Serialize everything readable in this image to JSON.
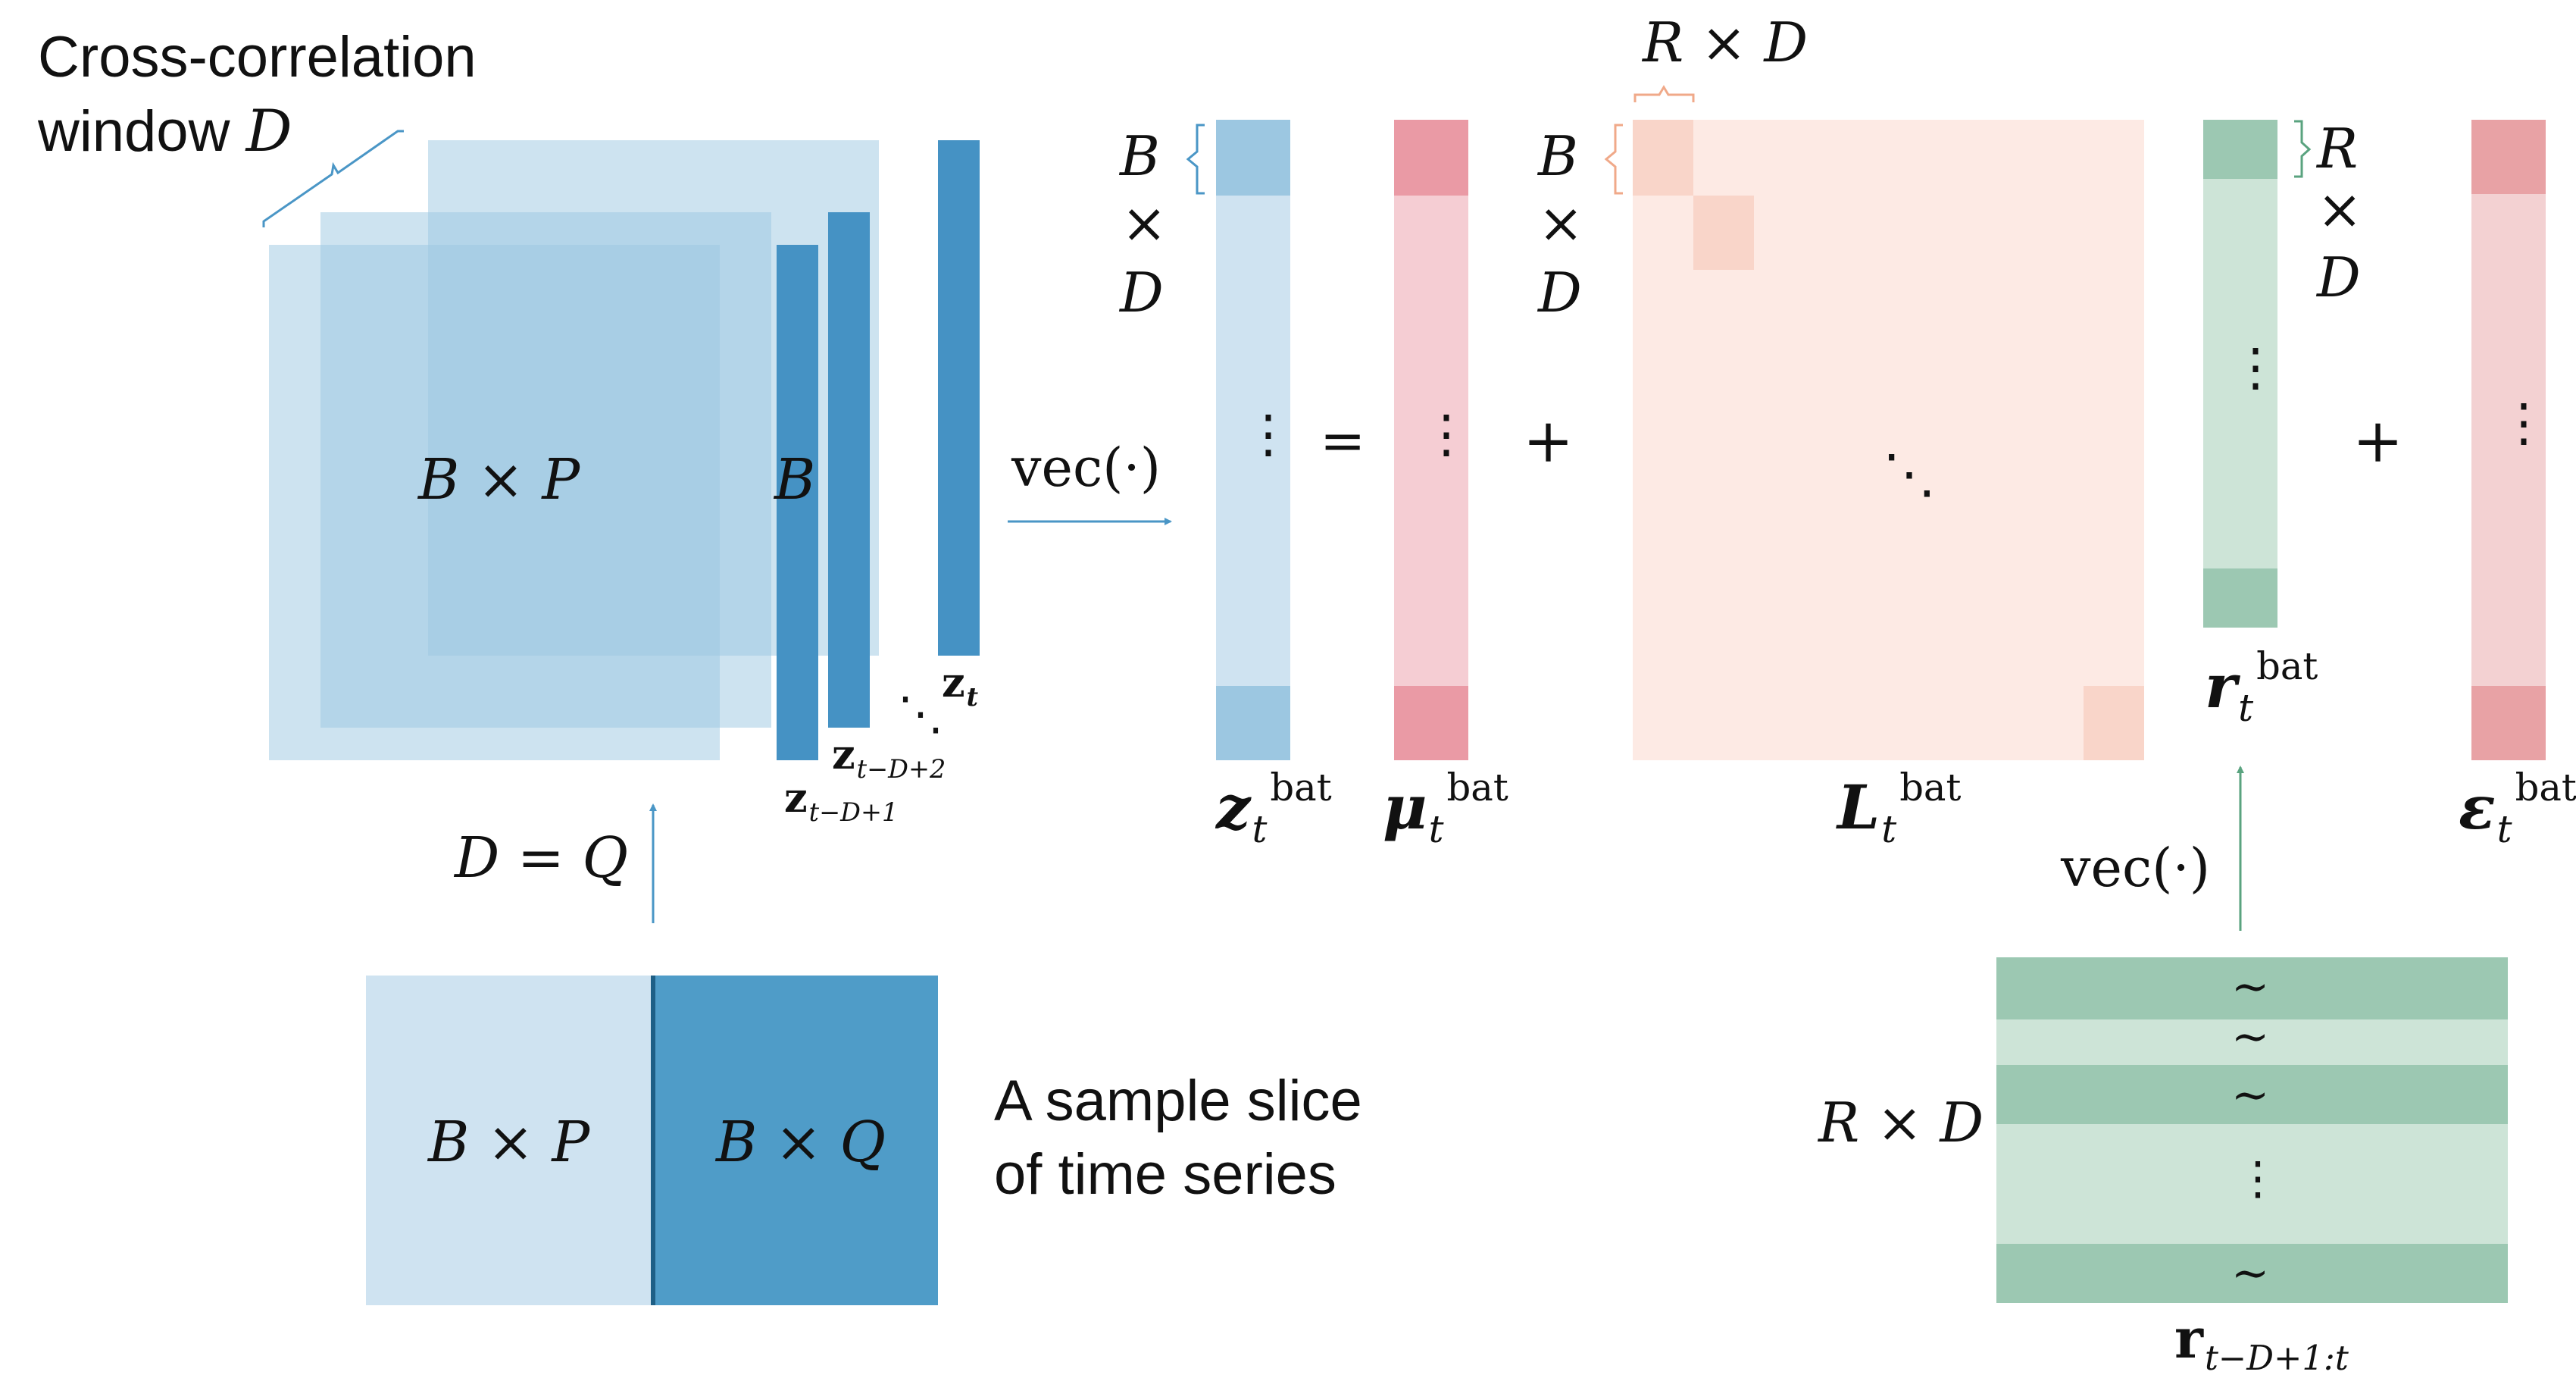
{
  "colors": {
    "blue_light": "#cfe3f1",
    "blue_mid": "#9cc7e1",
    "blue_dark": "#4f9cc8",
    "blue_bar": "#4592c4",
    "blue_arrow": "#4a96c6",
    "pink_light": "#f5cdd3",
    "pink_dark": "#ea9aa5",
    "peach_light": "#fdeae4",
    "peach_mid": "#f9d5c9",
    "peach_brace": "#f0a989",
    "green_light": "#cde4d7",
    "green_dark": "#9cc8b2",
    "green_arrow": "#5aa37f",
    "red_light": "#f3d1d2",
    "red_dark": "#e8a2a5"
  },
  "labels": {
    "cc_window_line1": "Cross-correlation",
    "cc_window_line2": "window",
    "cc_window_var": "D",
    "stack_BxP": "B × P",
    "stack_B": "B",
    "z_t_base": "z",
    "z_t_sub": "t",
    "z_tD2_sub": "t−D+2",
    "z_tD1_sub": "t−D+1",
    "D_eq_Q": "D = Q",
    "slice_BxP": "B × P",
    "slice_BxQ": "B × Q",
    "slice_caption_line1": "A sample slice",
    "slice_caption_line2": "of time series",
    "vec_top": "vec(·)",
    "vec_bottom": "vec(·)",
    "BxD_left_B": "B",
    "BxD_left_x": "×",
    "BxD_left_D": "D",
    "BxD_mid_B": "B",
    "BxD_mid_x": "×",
    "BxD_mid_D": "D",
    "RxD_top": "R × D",
    "RxD_right_R": "R",
    "RxD_right_x": "×",
    "RxD_right_D": "D",
    "RxD_bottom": "R × D",
    "equals": "=",
    "plus1": "+",
    "plus2": "+",
    "vdots": "⋮",
    "ddots": "⋱",
    "tilde": "∼",
    "sup_bat": "bat",
    "z_bat_base": "z",
    "mu_bat_base": "μ",
    "L_bat_base": "L",
    "r_bat_base": "r",
    "eps_bat_base": "ε",
    "sub_t": "t",
    "r_range_base": "r",
    "r_range_sub": "t−D+1:t"
  }
}
